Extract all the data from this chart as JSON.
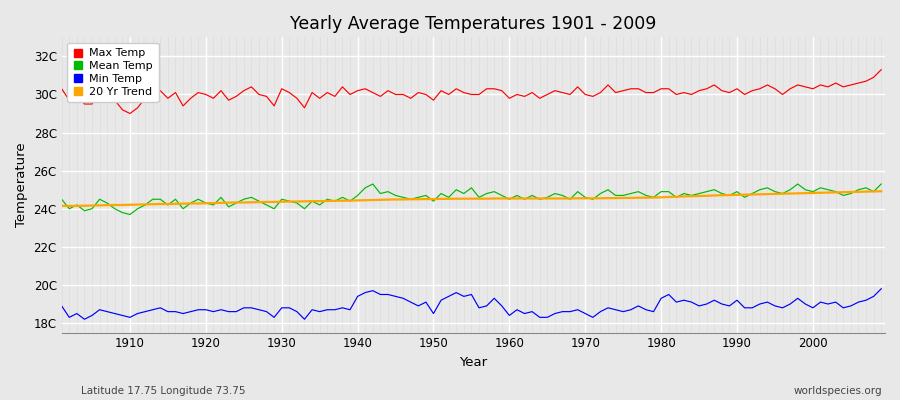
{
  "title": "Yearly Average Temperatures 1901 - 2009",
  "xlabel": "Year",
  "ylabel": "Temperature",
  "lat_lon_label": "Latitude 17.75 Longitude 73.75",
  "watermark": "worldspecies.org",
  "years": [
    1901,
    1902,
    1903,
    1904,
    1905,
    1906,
    1907,
    1908,
    1909,
    1910,
    1911,
    1912,
    1913,
    1914,
    1915,
    1916,
    1917,
    1918,
    1919,
    1920,
    1921,
    1922,
    1923,
    1924,
    1925,
    1926,
    1927,
    1928,
    1929,
    1930,
    1931,
    1932,
    1933,
    1934,
    1935,
    1936,
    1937,
    1938,
    1939,
    1940,
    1941,
    1942,
    1943,
    1944,
    1945,
    1946,
    1947,
    1948,
    1949,
    1950,
    1951,
    1952,
    1953,
    1954,
    1955,
    1956,
    1957,
    1958,
    1959,
    1960,
    1961,
    1962,
    1963,
    1964,
    1965,
    1966,
    1967,
    1968,
    1969,
    1970,
    1971,
    1972,
    1973,
    1974,
    1975,
    1976,
    1977,
    1978,
    1979,
    1980,
    1981,
    1982,
    1983,
    1984,
    1985,
    1986,
    1987,
    1988,
    1989,
    1990,
    1991,
    1992,
    1993,
    1994,
    1995,
    1996,
    1997,
    1998,
    1999,
    2000,
    2001,
    2002,
    2003,
    2004,
    2005,
    2006,
    2007,
    2008,
    2009
  ],
  "max_temp": [
    30.3,
    29.7,
    30.0,
    29.5,
    29.5,
    30.2,
    30.0,
    29.7,
    29.2,
    29.0,
    29.3,
    29.8,
    30.1,
    30.2,
    29.8,
    30.1,
    29.4,
    29.8,
    30.1,
    30.0,
    29.8,
    30.2,
    29.7,
    29.9,
    30.2,
    30.4,
    30.0,
    29.9,
    29.4,
    30.3,
    30.1,
    29.8,
    29.3,
    30.1,
    29.8,
    30.1,
    29.9,
    30.4,
    30.0,
    30.2,
    30.3,
    30.1,
    29.9,
    30.2,
    30.0,
    30.0,
    29.8,
    30.1,
    30.0,
    29.7,
    30.2,
    30.0,
    30.3,
    30.1,
    30.0,
    30.0,
    30.3,
    30.3,
    30.2,
    29.8,
    30.0,
    29.9,
    30.1,
    29.8,
    30.0,
    30.2,
    30.1,
    30.0,
    30.4,
    30.0,
    29.9,
    30.1,
    30.5,
    30.1,
    30.2,
    30.3,
    30.3,
    30.1,
    30.1,
    30.3,
    30.3,
    30.0,
    30.1,
    30.0,
    30.2,
    30.3,
    30.5,
    30.2,
    30.1,
    30.3,
    30.0,
    30.2,
    30.3,
    30.5,
    30.3,
    30.0,
    30.3,
    30.5,
    30.4,
    30.3,
    30.5,
    30.4,
    30.6,
    30.4,
    30.5,
    30.6,
    30.7,
    30.9,
    31.3
  ],
  "mean_temp": [
    24.5,
    24.0,
    24.2,
    23.9,
    24.0,
    24.5,
    24.3,
    24.0,
    23.8,
    23.7,
    24.0,
    24.2,
    24.5,
    24.5,
    24.2,
    24.5,
    24.0,
    24.3,
    24.5,
    24.3,
    24.2,
    24.6,
    24.1,
    24.3,
    24.5,
    24.6,
    24.4,
    24.2,
    24.0,
    24.5,
    24.4,
    24.3,
    24.0,
    24.4,
    24.2,
    24.5,
    24.4,
    24.6,
    24.4,
    24.7,
    25.1,
    25.3,
    24.8,
    24.9,
    24.7,
    24.6,
    24.5,
    24.6,
    24.7,
    24.4,
    24.8,
    24.6,
    25.0,
    24.8,
    25.1,
    24.6,
    24.8,
    24.9,
    24.7,
    24.5,
    24.7,
    24.5,
    24.7,
    24.5,
    24.6,
    24.8,
    24.7,
    24.5,
    24.9,
    24.6,
    24.5,
    24.8,
    25.0,
    24.7,
    24.7,
    24.8,
    24.9,
    24.7,
    24.6,
    24.9,
    24.9,
    24.6,
    24.8,
    24.7,
    24.8,
    24.9,
    25.0,
    24.8,
    24.7,
    24.9,
    24.6,
    24.8,
    25.0,
    25.1,
    24.9,
    24.8,
    25.0,
    25.3,
    25.0,
    24.9,
    25.1,
    25.0,
    24.9,
    24.7,
    24.8,
    25.0,
    25.1,
    24.9,
    25.3
  ],
  "min_temp": [
    18.9,
    18.3,
    18.5,
    18.2,
    18.4,
    18.7,
    18.6,
    18.5,
    18.4,
    18.3,
    18.5,
    18.6,
    18.7,
    18.8,
    18.6,
    18.6,
    18.5,
    18.6,
    18.7,
    18.7,
    18.6,
    18.7,
    18.6,
    18.6,
    18.8,
    18.8,
    18.7,
    18.6,
    18.3,
    18.8,
    18.8,
    18.6,
    18.2,
    18.7,
    18.6,
    18.7,
    18.7,
    18.8,
    18.7,
    19.4,
    19.6,
    19.7,
    19.5,
    19.5,
    19.4,
    19.3,
    19.1,
    18.9,
    19.1,
    18.5,
    19.2,
    19.4,
    19.6,
    19.4,
    19.5,
    18.8,
    18.9,
    19.3,
    18.9,
    18.4,
    18.7,
    18.5,
    18.6,
    18.3,
    18.3,
    18.5,
    18.6,
    18.6,
    18.7,
    18.5,
    18.3,
    18.6,
    18.8,
    18.7,
    18.6,
    18.7,
    18.9,
    18.7,
    18.6,
    19.3,
    19.5,
    19.1,
    19.2,
    19.1,
    18.9,
    19.0,
    19.2,
    19.0,
    18.9,
    19.2,
    18.8,
    18.8,
    19.0,
    19.1,
    18.9,
    18.8,
    19.0,
    19.3,
    19.0,
    18.8,
    19.1,
    19.0,
    19.1,
    18.8,
    18.9,
    19.1,
    19.2,
    19.4,
    19.8
  ],
  "trend_20yr": [
    24.15,
    24.15,
    24.15,
    24.16,
    24.17,
    24.18,
    24.19,
    24.2,
    24.2,
    24.21,
    24.22,
    24.23,
    24.24,
    24.25,
    24.25,
    24.26,
    24.27,
    24.28,
    24.28,
    24.29,
    24.3,
    24.31,
    24.32,
    24.33,
    24.33,
    24.34,
    24.35,
    24.36,
    24.36,
    24.37,
    24.38,
    24.38,
    24.39,
    24.4,
    24.4,
    24.41,
    24.42,
    24.42,
    24.43,
    24.44,
    24.45,
    24.46,
    24.47,
    24.48,
    24.49,
    24.49,
    24.5,
    24.5,
    24.51,
    24.51,
    24.52,
    24.52,
    24.53,
    24.53,
    24.53,
    24.53,
    24.53,
    24.54,
    24.54,
    24.54,
    24.54,
    24.54,
    24.54,
    24.54,
    24.54,
    24.54,
    24.54,
    24.54,
    24.55,
    24.55,
    24.55,
    24.55,
    24.56,
    24.56,
    24.57,
    24.57,
    24.58,
    24.58,
    24.59,
    24.6,
    24.62,
    24.63,
    24.65,
    24.66,
    24.67,
    24.68,
    24.7,
    24.71,
    24.72,
    24.73,
    24.74,
    24.75,
    24.76,
    24.77,
    24.78,
    24.79,
    24.8,
    24.81,
    24.82,
    24.83,
    24.84,
    24.85,
    24.86,
    24.87,
    24.88,
    24.89,
    24.9,
    24.91,
    24.92
  ],
  "max_color": "#ff0000",
  "mean_color": "#00bb00",
  "min_color": "#0000ff",
  "trend_color": "#ffa500",
  "fig_bg_color": "#e8e8e8",
  "plot_bg_color": "#e8e8e8",
  "grid_major_color": "#ffffff",
  "grid_minor_color": "#d8d8d8",
  "ylim": [
    17.5,
    33.0
  ],
  "yticks": [
    18,
    20,
    22,
    24,
    26,
    28,
    30,
    32
  ],
  "ytick_labels": [
    "18C",
    "20C",
    "22C",
    "24C",
    "26C",
    "28C",
    "30C",
    "32C"
  ],
  "xticks": [
    1910,
    1920,
    1930,
    1940,
    1950,
    1960,
    1970,
    1980,
    1990,
    2000
  ],
  "legend_labels": [
    "Max Temp",
    "Mean Temp",
    "Min Temp",
    "20 Yr Trend"
  ],
  "legend_colors": [
    "#ff0000",
    "#00bb00",
    "#0000ff",
    "#ffa500"
  ]
}
